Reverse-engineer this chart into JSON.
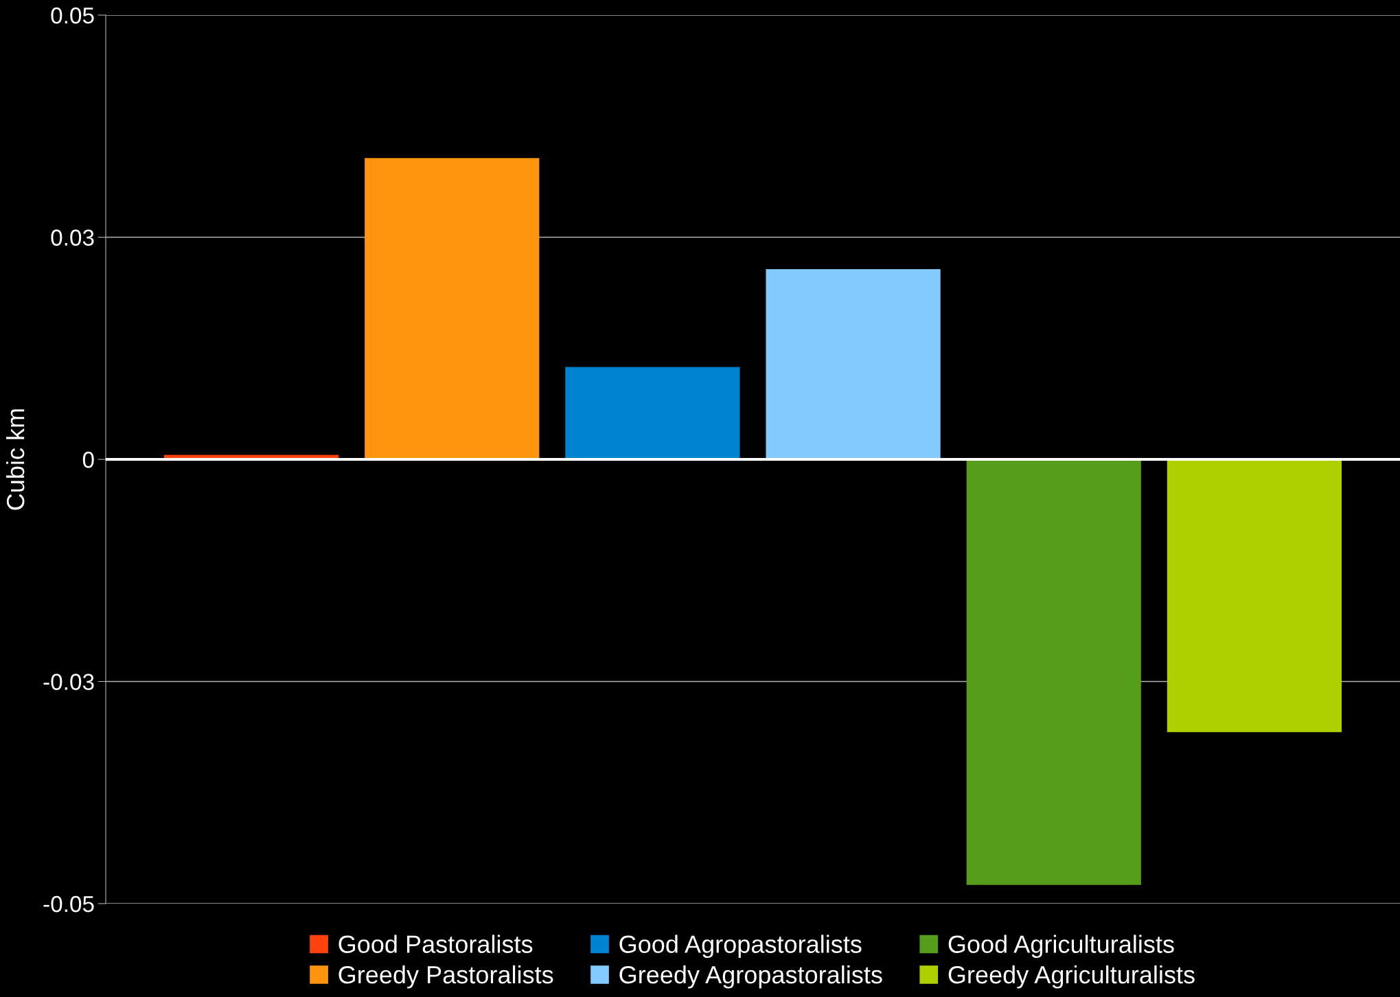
{
  "chart_data": {
    "type": "bar",
    "ylabel": "Cubic km",
    "categories": [
      null
    ],
    "series": [
      {
        "name": "Good Pastoralists",
        "color": "#ff420e",
        "values": [
          0.0005
        ]
      },
      {
        "name": "Greedy Pastoralists",
        "color": "#ff950e",
        "values": [
          0.0339
        ]
      },
      {
        "name": "Good Agropastoralists",
        "color": "#0084d1",
        "values": [
          0.0104
        ]
      },
      {
        "name": "Greedy Agropastoralists",
        "color": "#83caff",
        "values": [
          0.0214
        ]
      },
      {
        "name": "Good Agriculturalists",
        "color": "#579d1c",
        "values": [
          -0.0479
        ]
      },
      {
        "name": "Greedy Agriculturalists",
        "color": "#aecf00",
        "values": [
          -0.0307
        ]
      }
    ],
    "ylim": [
      -0.05,
      0.05
    ],
    "yticks": [
      {
        "value": -0.05,
        "label": "-0.05"
      },
      {
        "value": -0.025,
        "label": "-0.03"
      },
      {
        "value": 0,
        "label": "0"
      },
      {
        "value": 0.025,
        "label": "0.03"
      },
      {
        "value": 0.05,
        "label": "0.05"
      }
    ],
    "grid": "y",
    "legend": "bottom",
    "ref_lines": [
      {
        "axis": "y",
        "value": 0,
        "color": "#ffffff"
      }
    ]
  }
}
